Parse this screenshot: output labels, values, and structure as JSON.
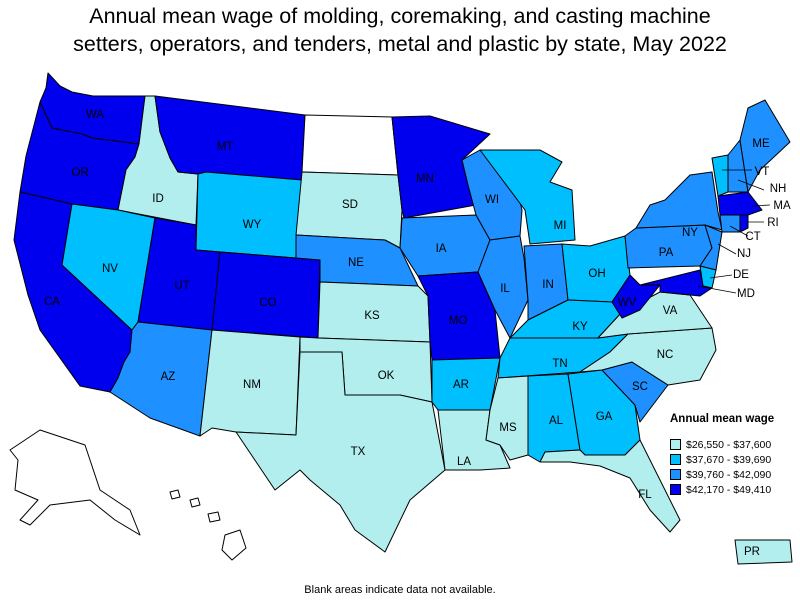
{
  "title_line1": "Annual mean wage of molding, coremaking, and casting machine",
  "title_line2": "setters, operators, and tenders, metal and plastic by state, May 2022",
  "legend": {
    "title": "Annual mean wage",
    "ranges": [
      {
        "label": "$26,550 - $37,600",
        "color": "#b2eeee"
      },
      {
        "label": "$37,670 - $39,690",
        "color": "#00bfff"
      },
      {
        "label": "$39,760 - $42,090",
        "color": "#1e90ff"
      },
      {
        "label": "$42,170 - $49,410",
        "color": "#0000ee"
      }
    ]
  },
  "note": "Blank areas indicate data not available.",
  "colors": {
    "blank": "#ffffff",
    "border": "#000000"
  },
  "states": {
    "WA": {
      "label": "WA",
      "bin": 3
    },
    "OR": {
      "label": "OR",
      "bin": 3
    },
    "CA": {
      "label": "CA",
      "bin": 3
    },
    "ID": {
      "label": "ID",
      "bin": 0
    },
    "NV": {
      "label": "NV",
      "bin": 1
    },
    "MT": {
      "label": "MT",
      "bin": 3
    },
    "WY": {
      "label": "WY",
      "bin": 1
    },
    "UT": {
      "label": "UT",
      "bin": 3
    },
    "CO": {
      "label": "CO",
      "bin": 3
    },
    "AZ": {
      "label": "AZ",
      "bin": 2
    },
    "NM": {
      "label": "NM",
      "bin": 0
    },
    "ND": {
      "label": "",
      "bin": null
    },
    "SD": {
      "label": "SD",
      "bin": 0
    },
    "NE": {
      "label": "NE",
      "bin": 2
    },
    "KS": {
      "label": "KS",
      "bin": 0
    },
    "OK": {
      "label": "OK",
      "bin": 0
    },
    "TX": {
      "label": "TX",
      "bin": 0
    },
    "MN": {
      "label": "MN",
      "bin": 3
    },
    "IA": {
      "label": "IA",
      "bin": 2
    },
    "MO": {
      "label": "MO",
      "bin": 3
    },
    "AR": {
      "label": "AR",
      "bin": 1
    },
    "LA": {
      "label": "LA",
      "bin": 0
    },
    "WI": {
      "label": "WI",
      "bin": 2
    },
    "IL": {
      "label": "IL",
      "bin": 2
    },
    "MI": {
      "label": "MI",
      "bin": 1
    },
    "IN": {
      "label": "IN",
      "bin": 2
    },
    "OH": {
      "label": "OH",
      "bin": 1
    },
    "KY": {
      "label": "KY",
      "bin": 1
    },
    "TN": {
      "label": "TN",
      "bin": 1
    },
    "MS": {
      "label": "MS",
      "bin": 0
    },
    "AL": {
      "label": "AL",
      "bin": 1
    },
    "GA": {
      "label": "GA",
      "bin": 1
    },
    "FL": {
      "label": "FL",
      "bin": 0
    },
    "SC": {
      "label": "SC",
      "bin": 2
    },
    "NC": {
      "label": "NC",
      "bin": 0
    },
    "VA": {
      "label": "VA",
      "bin": 0
    },
    "WV": {
      "label": "WV",
      "bin": 3
    },
    "PA": {
      "label": "PA",
      "bin": 2
    },
    "NY": {
      "label": "NY",
      "bin": 2
    },
    "ME": {
      "label": "ME",
      "bin": 2
    },
    "VT": {
      "label": "VT",
      "bin": 1
    },
    "NH": {
      "label": "NH",
      "bin": 2
    },
    "MA": {
      "label": "MA",
      "bin": 3
    },
    "RI": {
      "label": "RI",
      "bin": 3
    },
    "CT": {
      "label": "CT",
      "bin": 2
    },
    "NJ": {
      "label": "NJ",
      "bin": 2
    },
    "DE": {
      "label": "DE",
      "bin": 1
    },
    "MD": {
      "label": "MD",
      "bin": 3
    },
    "AK": {
      "label": "",
      "bin": null
    },
    "HI": {
      "label": "",
      "bin": null
    },
    "PR": {
      "label": "PR",
      "bin": 0
    }
  }
}
